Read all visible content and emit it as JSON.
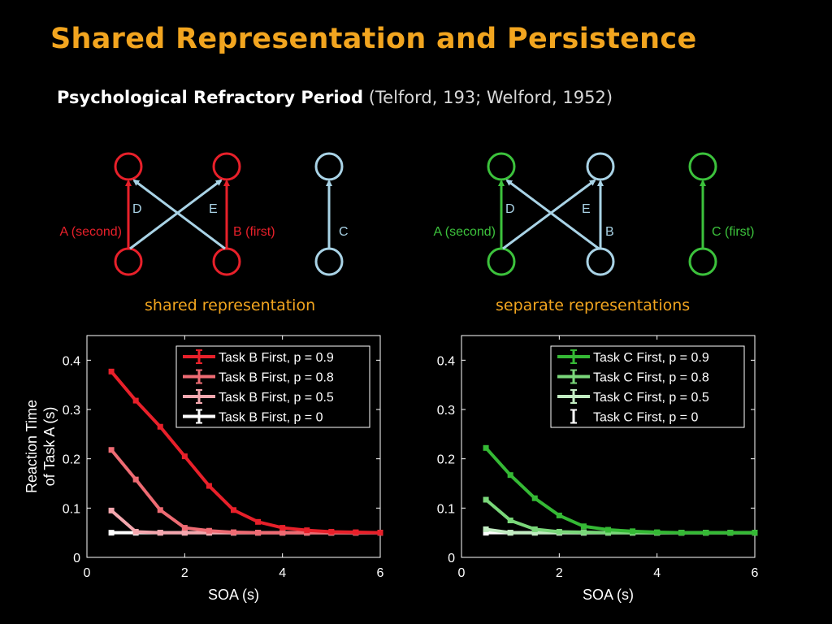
{
  "title": "Shared Representation and Persistence",
  "subtitle": {
    "bold": "Psychological Refractory Period",
    "rest": " (Telford, 193; Welford, 1952)"
  },
  "colors": {
    "red": "#e8202a",
    "green": "#3cc23c",
    "lightblue": "#a9d3e6",
    "orange": "#f2a51f"
  },
  "diagram_left": {
    "caption": "shared representation",
    "labels": {
      "a": "A (second)",
      "b": "B (first)",
      "c": "C",
      "d": "D",
      "e": "E"
    }
  },
  "diagram_right": {
    "caption": "separate  representations",
    "labels": {
      "a": "A (second)",
      "b": "B",
      "c": "C (first)",
      "d": "D",
      "e": "E"
    }
  },
  "chart_data": [
    {
      "type": "line",
      "xlabel": "SOA (s)",
      "ylabel": [
        "Reaction Time",
        "of Task A (s)"
      ],
      "xlim": [
        0,
        6
      ],
      "ylim": [
        0,
        0.45
      ],
      "xticks": [
        "0",
        "2",
        "4",
        "6"
      ],
      "yticks": [
        "0",
        "0.1",
        "0.2",
        "0.3",
        "0.4"
      ],
      "legend_position": "top-right",
      "x": [
        0.5,
        1,
        1.5,
        2,
        2.5,
        3,
        3.5,
        4,
        4.5,
        5,
        5.5,
        6
      ],
      "series": [
        {
          "name": "Task B First, p = 0.9",
          "color": "#e8202a",
          "values": [
            0.377,
            0.318,
            0.265,
            0.205,
            0.145,
            0.096,
            0.072,
            0.06,
            0.055,
            0.052,
            0.051,
            0.05
          ]
        },
        {
          "name": "Task B First, p = 0.8",
          "color": "#ee6b73",
          "values": [
            0.218,
            0.158,
            0.096,
            0.06,
            0.054,
            0.051,
            0.05,
            0.05,
            0.05,
            0.05,
            0.05,
            0.05
          ]
        },
        {
          "name": "Task B First, p = 0.5",
          "color": "#f4a7ae",
          "values": [
            0.095,
            0.052,
            0.05,
            0.05,
            0.05,
            0.05,
            0.05,
            0.05,
            0.05,
            0.05,
            0.05,
            0.05
          ]
        },
        {
          "name": "Task B First, p = 0",
          "color": "#ffffff",
          "values": [
            0.05,
            0.05,
            0.05,
            0.05,
            0.05,
            0.05,
            0.05,
            0.05,
            0.05,
            0.05,
            0.05,
            0.05
          ]
        }
      ]
    },
    {
      "type": "line",
      "xlabel": "SOA (s)",
      "ylabel": [
        "",
        ""
      ],
      "xlim": [
        0,
        6
      ],
      "ylim": [
        0,
        0.45
      ],
      "xticks": [
        "0",
        "2",
        "4",
        "6"
      ],
      "yticks": [
        "0",
        "0.1",
        "0.2",
        "0.3",
        "0.4"
      ],
      "legend_position": "top-right",
      "x": [
        0.5,
        1,
        1.5,
        2,
        2.5,
        3,
        3.5,
        4,
        4.5,
        5,
        5.5,
        6
      ],
      "series": [
        {
          "name": "Task C First, p = 0.9",
          "color": "#35b935",
          "values": [
            0.222,
            0.167,
            0.12,
            0.085,
            0.063,
            0.056,
            0.053,
            0.051,
            0.05,
            0.05,
            0.05,
            0.05
          ]
        },
        {
          "name": "Task C First, p = 0.8",
          "color": "#7ad77a",
          "values": [
            0.117,
            0.075,
            0.057,
            0.052,
            0.051,
            0.05,
            0.05,
            0.05,
            0.05,
            0.05,
            0.05,
            0.05
          ]
        },
        {
          "name": "Task C First, p = 0.5",
          "color": "#c2ecc2",
          "values": [
            0.057,
            0.05,
            0.05,
            0.05,
            0.05,
            0.05,
            0.05,
            0.05,
            0.05,
            0.05,
            0.05,
            0.05
          ]
        },
        {
          "name": "Task C First, p = 0",
          "color": "#ffffff",
          "values": [
            0.05,
            0.05,
            0.05,
            0.05,
            0.05,
            0.05,
            0.05,
            0.05,
            0.05,
            0.05,
            0.05,
            0.05
          ]
        }
      ]
    }
  ]
}
